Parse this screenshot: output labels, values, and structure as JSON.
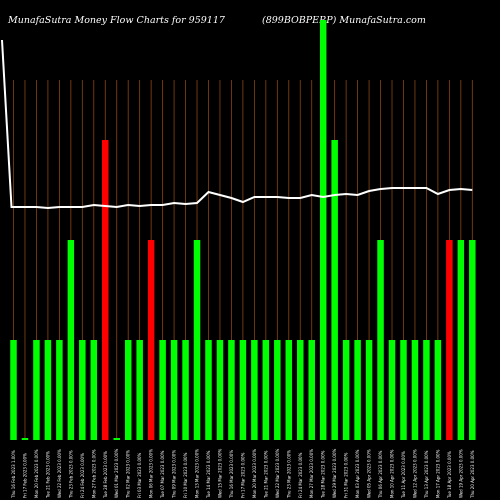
{
  "header": {
    "title_left": "MunafaSutra  Money Flow  Charts for 959117",
    "title_right": "(899BOBPERP)  MunafaSutra.com"
  },
  "colors": {
    "background": "#000000",
    "grid": "#8b4513",
    "up": "#00ff00",
    "down": "#ff0000",
    "line": "#ffffff"
  },
  "chart_data": {
    "type": "bar",
    "title": "MunafaSutra  Money Flow  Charts for 959117",
    "grid_vertical": true,
    "bar_values": [
      1,
      0.02,
      1,
      1,
      1,
      2,
      1,
      1,
      3,
      0.02,
      1,
      1,
      2,
      1,
      1,
      1,
      2,
      1,
      1,
      1,
      1,
      1,
      1,
      1,
      1,
      1,
      1,
      4.2,
      3,
      1,
      1,
      1,
      2,
      1,
      1,
      1,
      1,
      1,
      2,
      2,
      2
    ],
    "bar_colors": [
      "green",
      "green",
      "green",
      "green",
      "green",
      "green",
      "green",
      "green",
      "red",
      "green",
      "green",
      "green",
      "red",
      "green",
      "green",
      "green",
      "green",
      "green",
      "green",
      "green",
      "green",
      "green",
      "green",
      "green",
      "green",
      "green",
      "green",
      "green",
      "green",
      "green",
      "green",
      "green",
      "green",
      "green",
      "green",
      "green",
      "green",
      "green",
      "red",
      "green",
      "green"
    ],
    "line_values": [
      4.0,
      2.33,
      2.33,
      2.32,
      2.33,
      2.33,
      2.33,
      2.35,
      2.34,
      2.33,
      2.35,
      2.34,
      2.35,
      2.35,
      2.37,
      2.36,
      2.37,
      2.48,
      2.45,
      2.42,
      2.38,
      2.43,
      2.43,
      2.43,
      2.42,
      2.42,
      2.45,
      2.43,
      2.45,
      2.46,
      2.45,
      2.49,
      2.51,
      2.52,
      2.52,
      2.52,
      2.52,
      2.46,
      2.5,
      2.51,
      2.5
    ],
    "tick_labels": [
      "Thu 16 Feb 2023 1.00%",
      "Fri 17 Feb 2023 0.00%",
      "Mon 20 Feb 2023 0.00%",
      "Tue 21 Feb 2023 0.00%",
      "Wed 22 Feb 2023 0.00%",
      "Thu 23 Feb 2023 0.00%",
      "Fri 24 Feb 2023 0.00%",
      "Mon 27 Feb 2023 0.00%",
      "Tue 28 Feb 2023 0.00%",
      "Wed 01 Mar 2023 0.00%",
      "Thu 02 Mar 2023 0.00%",
      "Fri 03 Mar 2023 0.00%",
      "Mon 06 Mar 2023 0.00%",
      "Tue 07 Mar 2023 0.00%",
      "Thu 09 Mar 2023 0.00%",
      "Fri 10 Mar 2023 0.00%",
      "Mon 13 Mar 2023 0.00%",
      "Tue 14 Mar 2023 0.00%",
      "Wed 15 Mar 2023 0.00%",
      "Thu 16 Mar 2023 0.00%",
      "Fri 17 Mar 2023 0.00%",
      "Mon 20 Mar 2023 0.00%",
      "Tue 21 Mar 2023 0.00%",
      "Wed 22 Mar 2023 0.00%",
      "Thu 23 Mar 2023 0.00%",
      "Fri 24 Mar 2023 0.00%",
      "Mon 27 Mar 2023 0.00%",
      "Tue 28 Mar 2023 0.00%",
      "Wed 29 Mar 2023 0.00%",
      "Fri 31 Mar 2023 0.00%",
      "Mon 03 Apr 2023 0.00%",
      "Wed 05 Apr 2023 0.00%",
      "Thu 06 Apr 2023 0.00%",
      "Mon 10 Apr 2023 0.00%",
      "Tue 11 Apr 2023 0.00%",
      "Wed 12 Apr 2023 0.00%",
      "Thu 13 Apr 2023 0.00%",
      "Mon 17 Apr 2023 0.00%",
      "Tue 18 Apr 2023 0.00%",
      "Wed 19 Apr 2023 0.00%",
      "Thu 20 Apr 2023 0.00%"
    ]
  }
}
